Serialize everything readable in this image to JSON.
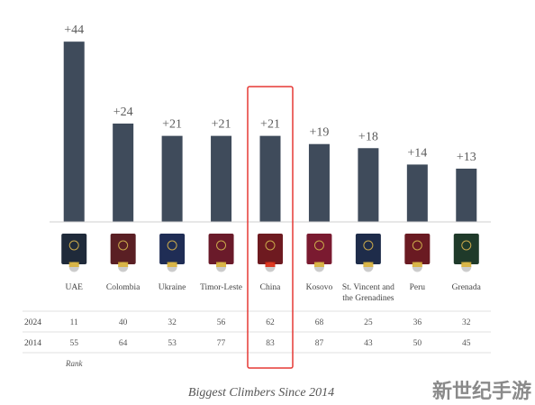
{
  "chart_data": {
    "type": "bar",
    "categories": [
      "UAE",
      "Colombia",
      "Ukraine",
      "Timor-Leste",
      "China",
      "Kosovo",
      "St. Vincent and the Grenadines",
      "Peru",
      "Grenada"
    ],
    "category_lines": [
      [
        "UAE"
      ],
      [
        "Colombia"
      ],
      [
        "Ukraine"
      ],
      [
        "Timor-Leste"
      ],
      [
        "China"
      ],
      [
        "Kosovo"
      ],
      [
        "St. Vincent and",
        "the Grenadines"
      ],
      [
        "Peru"
      ],
      [
        "Grenada"
      ]
    ],
    "values": [
      44,
      24,
      21,
      21,
      21,
      19,
      18,
      14,
      13
    ],
    "data_labels": [
      "+44",
      "+24",
      "+21",
      "+21",
      "+21",
      "+19",
      "+18",
      "+14",
      "+13"
    ],
    "ylim": [
      0,
      48
    ],
    "highlight_index": 4,
    "bar_color": "#3f4b5b",
    "highlight_color": "#e53935",
    "table": {
      "rows": [
        {
          "label": "2024",
          "values": [
            "11",
            "40",
            "32",
            "56",
            "62",
            "68",
            "25",
            "36",
            "32"
          ]
        },
        {
          "label": "2014",
          "values": [
            "55",
            "64",
            "53",
            "77",
            "83",
            "87",
            "43",
            "50",
            "45"
          ]
        }
      ],
      "footer": "Rank"
    },
    "caption": "Biggest Climbers Since 2014",
    "passport_colors": [
      "#1f2a3a",
      "#5a1f24",
      "#1f2d55",
      "#6a1a2a",
      "#6e1a20",
      "#7a1a30",
      "#1e2c4a",
      "#6a1a22",
      "#1f3a2a"
    ],
    "flag_icons": [
      "uae-flag-icon",
      "colombia-flag-icon",
      "ukraine-flag-icon",
      "timor-leste-flag-icon",
      "china-flag-icon",
      "kosovo-flag-icon",
      "st-vincent-flag-icon",
      "peru-flag-icon",
      "grenada-flag-icon"
    ]
  },
  "watermark": "新世纪手游"
}
